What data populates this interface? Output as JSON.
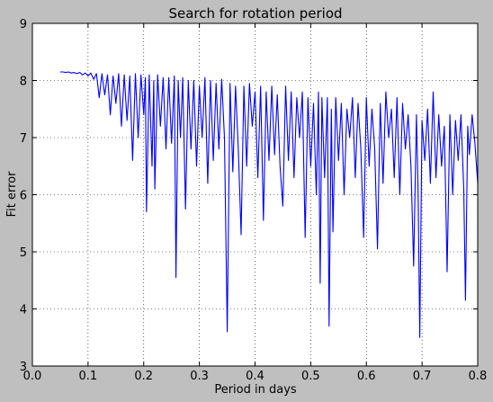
{
  "chart_data": {
    "type": "line",
    "title": "Search for rotation period",
    "xlabel": "Period in days",
    "ylabel": "Fit error",
    "xlim": [
      0.0,
      0.8
    ],
    "ylim": [
      3,
      9
    ],
    "xticks": [
      "0.0",
      "0.1",
      "0.2",
      "0.3",
      "0.4",
      "0.5",
      "0.6",
      "0.7",
      "0.8"
    ],
    "yticks": [
      "3",
      "4",
      "5",
      "6",
      "7",
      "8",
      "9"
    ],
    "grid": true,
    "series": [
      {
        "color": "#0000ff",
        "points": [
          [
            0.05,
            8.15
          ],
          [
            0.055,
            8.15
          ],
          [
            0.06,
            8.14
          ],
          [
            0.065,
            8.15
          ],
          [
            0.07,
            8.13
          ],
          [
            0.075,
            8.14
          ],
          [
            0.08,
            8.12
          ],
          [
            0.085,
            8.14
          ],
          [
            0.09,
            8.1
          ],
          [
            0.095,
            8.13
          ],
          [
            0.1,
            8.08
          ],
          [
            0.105,
            8.13
          ],
          [
            0.11,
            8.02
          ],
          [
            0.115,
            8.12
          ],
          [
            0.12,
            7.7
          ],
          [
            0.125,
            8.12
          ],
          [
            0.13,
            7.75
          ],
          [
            0.135,
            8.1
          ],
          [
            0.14,
            7.4
          ],
          [
            0.145,
            8.08
          ],
          [
            0.15,
            7.6
          ],
          [
            0.155,
            8.12
          ],
          [
            0.16,
            7.2
          ],
          [
            0.165,
            8.1
          ],
          [
            0.17,
            7.3
          ],
          [
            0.175,
            8.08
          ],
          [
            0.18,
            6.6
          ],
          [
            0.185,
            8.12
          ],
          [
            0.19,
            7.0
          ],
          [
            0.195,
            8.1
          ],
          [
            0.2,
            7.4
          ],
          [
            0.203,
            8.05
          ],
          [
            0.205,
            5.7
          ],
          [
            0.21,
            8.1
          ],
          [
            0.215,
            6.5
          ],
          [
            0.218,
            8.0
          ],
          [
            0.22,
            6.1
          ],
          [
            0.225,
            8.1
          ],
          [
            0.23,
            7.2
          ],
          [
            0.235,
            8.05
          ],
          [
            0.24,
            6.8
          ],
          [
            0.245,
            8.05
          ],
          [
            0.25,
            6.9
          ],
          [
            0.255,
            8.08
          ],
          [
            0.258,
            4.55
          ],
          [
            0.262,
            8.0
          ],
          [
            0.266,
            7.0
          ],
          [
            0.27,
            8.05
          ],
          [
            0.275,
            5.75
          ],
          [
            0.28,
            8.0
          ],
          [
            0.285,
            6.8
          ],
          [
            0.29,
            8.0
          ],
          [
            0.295,
            6.5
          ],
          [
            0.3,
            7.9
          ],
          [
            0.305,
            7.0
          ],
          [
            0.31,
            8.05
          ],
          [
            0.315,
            6.2
          ],
          [
            0.32,
            8.0
          ],
          [
            0.325,
            6.6
          ],
          [
            0.33,
            7.95
          ],
          [
            0.335,
            6.8
          ],
          [
            0.34,
            8.02
          ],
          [
            0.345,
            7.0
          ],
          [
            0.35,
            3.6
          ],
          [
            0.355,
            7.95
          ],
          [
            0.36,
            6.4
          ],
          [
            0.365,
            7.9
          ],
          [
            0.37,
            6.8
          ],
          [
            0.375,
            5.3
          ],
          [
            0.38,
            7.9
          ],
          [
            0.385,
            6.5
          ],
          [
            0.39,
            7.95
          ],
          [
            0.395,
            7.2
          ],
          [
            0.4,
            7.8
          ],
          [
            0.405,
            6.3
          ],
          [
            0.41,
            7.9
          ],
          [
            0.415,
            5.55
          ],
          [
            0.42,
            7.8
          ],
          [
            0.425,
            6.6
          ],
          [
            0.43,
            7.9
          ],
          [
            0.435,
            6.7
          ],
          [
            0.44,
            7.75
          ],
          [
            0.445,
            6.5
          ],
          [
            0.45,
            5.8
          ],
          [
            0.455,
            7.9
          ],
          [
            0.46,
            6.6
          ],
          [
            0.465,
            7.8
          ],
          [
            0.47,
            6.3
          ],
          [
            0.475,
            7.7
          ],
          [
            0.48,
            7.0
          ],
          [
            0.485,
            7.8
          ],
          [
            0.49,
            5.25
          ],
          [
            0.495,
            7.7
          ],
          [
            0.5,
            6.5
          ],
          [
            0.505,
            7.6
          ],
          [
            0.51,
            6.0
          ],
          [
            0.514,
            7.8
          ],
          [
            0.517,
            4.45
          ],
          [
            0.52,
            7.7
          ],
          [
            0.525,
            6.3
          ],
          [
            0.53,
            7.7
          ],
          [
            0.533,
            3.7
          ],
          [
            0.537,
            7.5
          ],
          [
            0.54,
            5.35
          ],
          [
            0.545,
            7.7
          ],
          [
            0.55,
            6.6
          ],
          [
            0.555,
            7.6
          ],
          [
            0.56,
            6.0
          ],
          [
            0.565,
            7.5
          ],
          [
            0.57,
            7.0
          ],
          [
            0.575,
            7.7
          ],
          [
            0.58,
            6.3
          ],
          [
            0.585,
            7.6
          ],
          [
            0.59,
            6.8
          ],
          [
            0.595,
            5.25
          ],
          [
            0.6,
            7.7
          ],
          [
            0.605,
            6.5
          ],
          [
            0.61,
            7.5
          ],
          [
            0.615,
            6.8
          ],
          [
            0.62,
            5.05
          ],
          [
            0.625,
            7.6
          ],
          [
            0.63,
            6.2
          ],
          [
            0.635,
            7.8
          ],
          [
            0.64,
            7.0
          ],
          [
            0.645,
            7.5
          ],
          [
            0.65,
            6.3
          ],
          [
            0.655,
            7.7
          ],
          [
            0.66,
            6.0
          ],
          [
            0.665,
            7.6
          ],
          [
            0.67,
            6.8
          ],
          [
            0.675,
            7.4
          ],
          [
            0.68,
            6.5
          ],
          [
            0.685,
            4.75
          ],
          [
            0.69,
            7.4
          ],
          [
            0.693,
            6.0
          ],
          [
            0.696,
            3.5
          ],
          [
            0.7,
            7.3
          ],
          [
            0.705,
            6.6
          ],
          [
            0.71,
            7.5
          ],
          [
            0.715,
            6.2
          ],
          [
            0.72,
            7.8
          ],
          [
            0.725,
            6.3
          ],
          [
            0.73,
            7.4
          ],
          [
            0.735,
            6.5
          ],
          [
            0.74,
            7.2
          ],
          [
            0.745,
            4.65
          ],
          [
            0.75,
            7.4
          ],
          [
            0.755,
            6.0
          ],
          [
            0.76,
            7.3
          ],
          [
            0.765,
            6.6
          ],
          [
            0.77,
            7.4
          ],
          [
            0.775,
            6.1
          ],
          [
            0.778,
            4.15
          ],
          [
            0.782,
            7.2
          ],
          [
            0.785,
            6.7
          ],
          [
            0.79,
            7.4
          ],
          [
            0.795,
            6.9
          ],
          [
            0.8,
            6.2
          ]
        ]
      }
    ]
  }
}
